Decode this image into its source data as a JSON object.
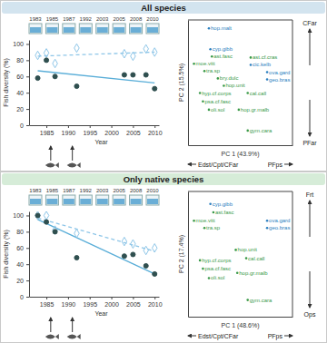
{
  "headers": [
    "All species",
    "Only native species"
  ],
  "chart_data": [
    {
      "type": "line",
      "x": [
        1983,
        1985,
        1987,
        1992,
        2003,
        2005,
        2008,
        2010
      ],
      "icon_years": [
        "1983",
        "1985",
        "1987",
        "1992",
        "2003",
        "2005",
        "2008",
        "2010"
      ],
      "xlabel": "Year",
      "ylabel": "Fish diversity (%)",
      "xlim": [
        1981,
        2011
      ],
      "ylim": [
        0,
        105
      ],
      "xticks": [
        1985,
        1990,
        1995,
        2000,
        2005,
        2010
      ],
      "yticks": [
        0,
        20,
        40,
        60,
        80,
        100
      ],
      "introductions": [
        1986,
        1991
      ],
      "series": [
        {
          "type": "scatter",
          "marker": "diamond",
          "color": "#8ec6e8",
          "values": [
            86,
            89,
            76,
            95,
            88,
            85,
            94,
            90
          ]
        },
        {
          "type": "scatter",
          "marker": "circle",
          "color": "#2f4f4f",
          "values": [
            58,
            80,
            60,
            48,
            62,
            62,
            62,
            45
          ]
        },
        {
          "type": "line",
          "line_style": "dashed",
          "color": "#8ec6e8",
          "x": [
            1983,
            2010
          ],
          "values": [
            85,
            90
          ]
        },
        {
          "type": "line",
          "line_style": "solid",
          "color": "#5aaed8",
          "x": [
            1983,
            2010
          ],
          "values": [
            67,
            52
          ]
        }
      ]
    },
    {
      "type": "scatter",
      "xlabel": "PC 1 (43.9%)",
      "ylabel": "PC 2 (15.5%)",
      "xlim": [
        -3,
        4
      ],
      "ylim": [
        -3,
        3
      ],
      "tick_labels": false,
      "annotations": {
        "top": "CFar",
        "bottom": "PFar",
        "left": "Edst/Cpt/CFar",
        "right": "PFps"
      },
      "x": [
        -1.6,
        -1.5,
        -1.4,
        -2.6,
        -1.9,
        -1.0,
        -0.6,
        -2.2,
        -2.0,
        -1.6,
        1.2,
        1.2,
        2.3,
        2.3,
        1.0,
        0.4,
        1.0
      ],
      "series": [
        {
          "labels": [
            "hop.malt",
            "cyp.gibb",
            "ast.fasc",
            "moe.vitt",
            "tra.sp",
            "bry.dulc",
            "hop.unit",
            "hyp.cf.corps",
            "psa.cf.fasc",
            "oli.sol",
            "ast.cf.cras",
            "cic.kelb",
            "ova.gard",
            "geo.bras",
            "cal.call",
            "hop.gr.malb",
            "gym.cara"
          ],
          "values": [
            2.6,
            1.6,
            1.25,
            0.9,
            0.55,
            0.2,
            -0.15,
            -0.5,
            -0.9,
            -1.3,
            1.2,
            0.85,
            0.5,
            0.15,
            -0.5,
            -1.3,
            -2.3
          ],
          "colors": [
            "#2a7fc0",
            "#2a7fc0",
            "#3a9a4a",
            "#3a9a4a",
            "#3a9a4a",
            "#3a9a4a",
            "#3a9a4a",
            "#3a9a4a",
            "#3a9a4a",
            "#3a9a4a",
            "#3a9a4a",
            "#2a7fc0",
            "#2a7fc0",
            "#2a7fc0",
            "#3a9a4a",
            "#3a9a4a",
            "#3a9a4a"
          ]
        }
      ]
    },
    {
      "type": "line",
      "x": [
        1983,
        1985,
        1987,
        1992,
        2003,
        2005,
        2008,
        2010
      ],
      "icon_years": [
        "1983",
        "1985",
        "1987",
        "1992",
        "2003",
        "2005",
        "2008",
        "2010"
      ],
      "xlabel": "Year",
      "ylabel": "Fish diversity (%)",
      "xlim": [
        1981,
        2011
      ],
      "ylim": [
        0,
        105
      ],
      "xticks": [
        1985,
        1990,
        1995,
        2000,
        2005,
        2010
      ],
      "yticks": [
        0,
        20,
        40,
        60,
        80,
        100
      ],
      "introductions": [
        1986,
        1991
      ],
      "series": [
        {
          "type": "scatter",
          "marker": "diamond",
          "color": "#8ec6e8",
          "values": [
            100,
            100,
            82,
            78,
            68,
            65,
            57,
            60
          ]
        },
        {
          "type": "scatter",
          "marker": "circle",
          "color": "#2f4f4f",
          "values": [
            100,
            92,
            80,
            48,
            50,
            52,
            38,
            28
          ]
        },
        {
          "type": "line",
          "line_style": "dashed",
          "color": "#8ec6e8",
          "x": [
            1983,
            2010
          ],
          "values": [
            97,
            56
          ]
        },
        {
          "type": "line",
          "line_style": "solid",
          "color": "#5aaed8",
          "x": [
            1983,
            2010
          ],
          "values": [
            95,
            28
          ]
        }
      ]
    },
    {
      "type": "scatter",
      "xlabel": "PC 1 (48.6%)",
      "ylabel": "PC 2 (17.4%)",
      "xlim": [
        -3,
        4
      ],
      "ylim": [
        -3,
        3
      ],
      "tick_labels": false,
      "annotations": {
        "top": "Frt",
        "bottom": "Ops",
        "left": "Edst/Cpt/CFar",
        "right": "PFps"
      },
      "x": [
        -1.5,
        -1.3,
        -2.6,
        -1.9,
        2.3,
        2.3,
        0.2,
        0.9,
        -2.2,
        -2.0,
        -1.6,
        0.3,
        1.0
      ],
      "series": [
        {
          "labels": [
            "cyp.gibb",
            "ast.fasc",
            "moe.vitt",
            "tra.sp",
            "ova.gard",
            "geo.bras",
            "hop.unit",
            "cal.call",
            "hyp.cf.corps",
            "psa.cf.fasc",
            "oli.sol",
            "hop.gr.malb",
            "gym.cara"
          ],
          "values": [
            2.4,
            2.0,
            1.6,
            1.25,
            1.6,
            1.25,
            0.2,
            -0.2,
            -0.3,
            -0.7,
            -1.15,
            -0.9,
            -2.2
          ],
          "colors": [
            "#2a7fc0",
            "#3a9a4a",
            "#3a9a4a",
            "#3a9a4a",
            "#2a7fc0",
            "#2a7fc0",
            "#3a9a4a",
            "#3a9a4a",
            "#3a9a4a",
            "#3a9a4a",
            "#3a9a4a",
            "#3a9a4a",
            "#3a9a4a"
          ]
        }
      ]
    }
  ]
}
